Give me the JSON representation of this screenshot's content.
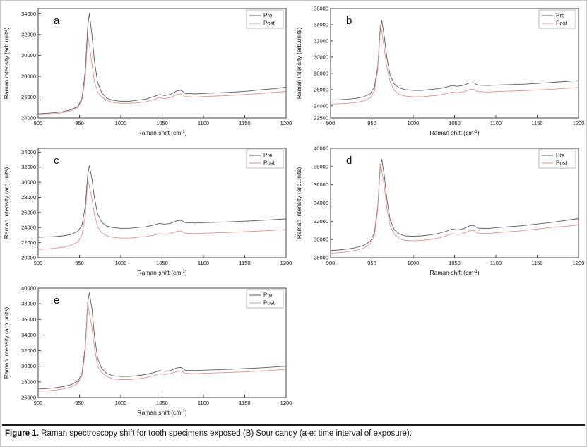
{
  "page": {
    "background": "#ffffff",
    "border_color": "#c9c9c9"
  },
  "caption": {
    "figure_label": "Figure 1.",
    "text": " Raman spectroscopy shift for tooth specimens exposed (B) Sour candy (a-e: time interval of exposure)."
  },
  "colors": {
    "pre": "#5a5a5a",
    "post": "#e39090",
    "frame": "#444444",
    "text": "#111111",
    "legend_border": "#aaaaaa"
  },
  "axis": {
    "xlabel": "Raman shift (cm⁻¹)",
    "xlabel_main": "Raman shift (cm",
    "xlabel_sup": "-1",
    "xlabel_end": ")",
    "ylabel": "Raman intensity (arb.units)"
  },
  "legend_labels": [
    "Pre",
    "Post"
  ],
  "x_values": [
    900,
    910,
    920,
    930,
    940,
    948,
    953,
    957,
    960,
    962,
    965,
    968,
    972,
    977,
    983,
    990,
    1000,
    1010,
    1020,
    1030,
    1040,
    1047,
    1053,
    1060,
    1068,
    1073,
    1078,
    1090,
    1100,
    1115,
    1130,
    1150,
    1170,
    1185,
    1200
  ],
  "chart_data": [
    {
      "type": "line",
      "panel_label": "a",
      "xlabel": "Raman shift (cm⁻¹)",
      "ylabel": "Raman intensity (arb.units)",
      "xlim": [
        900,
        1200
      ],
      "xticks": [
        900,
        950,
        1000,
        1050,
        1100,
        1150,
        1200
      ],
      "ylim": [
        24000,
        34500
      ],
      "yticks": [
        24000,
        26000,
        28000,
        30000,
        32000,
        34000
      ],
      "legend_position": "top-right",
      "series": [
        {
          "name": "Pre",
          "color": "#5a5a5a",
          "y": [
            24400,
            24450,
            24500,
            24600,
            24800,
            25100,
            25900,
            28500,
            32800,
            34000,
            32000,
            29500,
            27400,
            26400,
            25900,
            25700,
            25600,
            25600,
            25700,
            25800,
            26050,
            26250,
            26150,
            26250,
            26600,
            26650,
            26350,
            26300,
            26350,
            26400,
            26450,
            26550,
            26700,
            26800,
            26950
          ]
        },
        {
          "name": "Post",
          "color": "#e39090",
          "y": [
            24300,
            24350,
            24400,
            24500,
            24700,
            25000,
            25700,
            27800,
            31900,
            31000,
            29200,
            27500,
            26500,
            26000,
            25700,
            25500,
            25400,
            25400,
            25450,
            25550,
            25750,
            25950,
            25850,
            25950,
            26250,
            26300,
            26050,
            26000,
            26050,
            26100,
            26150,
            26250,
            26350,
            26450,
            26550
          ]
        }
      ]
    },
    {
      "type": "line",
      "panel_label": "b",
      "xlabel": "Raman shift (cm⁻¹)",
      "ylabel": "Raman intensity (arb.units)",
      "xlim": [
        900,
        1200
      ],
      "xticks": [
        900,
        950,
        1000,
        1050,
        1100,
        1150,
        1200
      ],
      "ylim": [
        22500,
        36000
      ],
      "yticks": [
        22500,
        24000,
        26000,
        28000,
        30000,
        32000,
        34000,
        36000
      ],
      "legend_position": "top-right",
      "series": [
        {
          "name": "Pre",
          "color": "#5a5a5a",
          "y": [
            24700,
            24750,
            24800,
            24900,
            25100,
            25500,
            26300,
            28800,
            33200,
            34500,
            32500,
            30000,
            27800,
            26700,
            26200,
            26000,
            25900,
            25900,
            26000,
            26100,
            26300,
            26500,
            26400,
            26500,
            26800,
            26850,
            26550,
            26500,
            26550,
            26600,
            26650,
            26750,
            26900,
            27000,
            27100
          ]
        },
        {
          "name": "Post",
          "color": "#e39090",
          "y": [
            24200,
            24250,
            24300,
            24400,
            24600,
            25000,
            25800,
            28300,
            34000,
            33200,
            31000,
            28800,
            27000,
            25900,
            25400,
            25200,
            25100,
            25100,
            25200,
            25300,
            25500,
            25700,
            25600,
            25700,
            26000,
            26050,
            25750,
            25700,
            25750,
            25800,
            25850,
            25950,
            26050,
            26150,
            26250
          ]
        }
      ]
    },
    {
      "type": "line",
      "panel_label": "c",
      "xlabel": "Raman shift (cm⁻¹)",
      "ylabel": "Raman intensity (arb.units)",
      "xlim": [
        900,
        1200
      ],
      "xticks": [
        900,
        950,
        1000,
        1050,
        1100,
        1150,
        1200
      ],
      "ylim": [
        20000,
        34500
      ],
      "yticks": [
        20000,
        22000,
        24000,
        26000,
        28000,
        30000,
        32000,
        34000
      ],
      "legend_position": "top-right",
      "series": [
        {
          "name": "Pre",
          "color": "#5a5a5a",
          "y": [
            22700,
            22750,
            22800,
            22900,
            23100,
            23500,
            24300,
            26800,
            31000,
            32200,
            30500,
            28000,
            25800,
            24700,
            24200,
            24000,
            23900,
            23900,
            24000,
            24100,
            24350,
            24550,
            24450,
            24550,
            24900,
            24950,
            24650,
            24600,
            24650,
            24700,
            24750,
            24850,
            24950,
            25050,
            25150
          ]
        },
        {
          "name": "Post",
          "color": "#e39090",
          "y": [
            21100,
            21150,
            21250,
            21400,
            21650,
            22100,
            23000,
            25500,
            30300,
            29500,
            27800,
            25800,
            24100,
            23300,
            22900,
            22700,
            22600,
            22600,
            22700,
            22800,
            23000,
            23200,
            23100,
            23200,
            23500,
            23550,
            23250,
            23200,
            23250,
            23300,
            23350,
            23450,
            23550,
            23650,
            23750
          ]
        }
      ]
    },
    {
      "type": "line",
      "panel_label": "d",
      "xlabel": "Raman shift (cm⁻¹)",
      "ylabel": "Raman intensity (arb.units)",
      "xlim": [
        900,
        1200
      ],
      "xticks": [
        900,
        950,
        1000,
        1050,
        1100,
        1150,
        1200
      ],
      "ylim": [
        28000,
        40000
      ],
      "yticks": [
        28000,
        30000,
        32000,
        34000,
        36000,
        38000,
        40000
      ],
      "legend_position": "top-right",
      "series": [
        {
          "name": "Pre",
          "color": "#5a5a5a",
          "y": [
            28800,
            28850,
            28950,
            29100,
            29350,
            29800,
            30700,
            33500,
            37800,
            38800,
            37000,
            34500,
            32200,
            31100,
            30600,
            30400,
            30350,
            30400,
            30500,
            30650,
            30900,
            31150,
            31050,
            31150,
            31500,
            31550,
            31250,
            31200,
            31300,
            31400,
            31500,
            31700,
            31900,
            32100,
            32300
          ]
        },
        {
          "name": "Post",
          "color": "#e39090",
          "y": [
            28500,
            28550,
            28650,
            28800,
            29050,
            29500,
            30400,
            33200,
            38300,
            37600,
            35800,
            33500,
            31500,
            30600,
            30100,
            29900,
            29850,
            29900,
            30000,
            30150,
            30400,
            30650,
            30550,
            30650,
            30950,
            31000,
            30700,
            30650,
            30750,
            30850,
            30950,
            31150,
            31350,
            31450,
            31600
          ]
        }
      ]
    },
    {
      "type": "line",
      "panel_label": "e",
      "xlabel": "Raman shift (cm⁻¹)",
      "ylabel": "Raman intensity (arb.units)",
      "xlim": [
        900,
        1200
      ],
      "xticks": [
        900,
        950,
        1000,
        1050,
        1100,
        1150,
        1200
      ],
      "ylim": [
        26000,
        40000
      ],
      "yticks": [
        26000,
        28000,
        30000,
        32000,
        34000,
        36000,
        38000,
        40000
      ],
      "legend_position": "top-right",
      "series": [
        {
          "name": "Pre",
          "color": "#5a5a5a",
          "y": [
            27100,
            27150,
            27250,
            27400,
            27650,
            28100,
            29100,
            32500,
            38200,
            39400,
            37400,
            34000,
            31000,
            29700,
            29100,
            28800,
            28700,
            28700,
            28800,
            28950,
            29200,
            29450,
            29350,
            29450,
            29800,
            29850,
            29500,
            29450,
            29500,
            29550,
            29600,
            29700,
            29800,
            29900,
            30000
          ]
        },
        {
          "name": "Post",
          "color": "#e39090",
          "y": [
            26800,
            26850,
            26950,
            27100,
            27350,
            27800,
            28800,
            31800,
            38000,
            36800,
            35000,
            32500,
            30000,
            29200,
            28700,
            28400,
            28300,
            28300,
            28400,
            28550,
            28800,
            29050,
            28950,
            29050,
            29350,
            29400,
            29100,
            29050,
            29100,
            29150,
            29200,
            29300,
            29400,
            29500,
            29600
          ]
        }
      ]
    }
  ]
}
